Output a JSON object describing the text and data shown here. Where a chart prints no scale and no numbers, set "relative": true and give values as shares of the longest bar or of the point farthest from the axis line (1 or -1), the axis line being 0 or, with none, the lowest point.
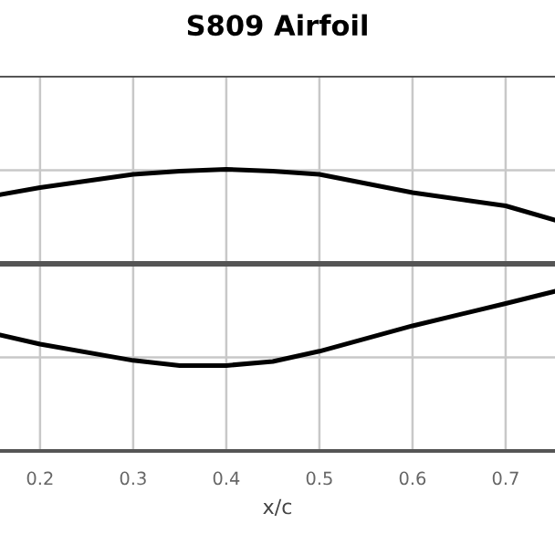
{
  "chart_data": {
    "type": "line",
    "title": "S809 Airfoil",
    "xlabel": "x/c",
    "relative": true,
    "grid": true,
    "xlim": [
      0.157,
      0.753
    ],
    "xticks": [
      0.2,
      0.3,
      0.4,
      0.5,
      0.6,
      0.7
    ],
    "series": [
      {
        "color": "#000000",
        "x": [
          0.157,
          0.2,
          0.3,
          0.35,
          0.4,
          0.45,
          0.5,
          0.6,
          0.7,
          0.753
        ],
        "values": [
          0.68,
          0.75,
          0.88,
          0.91,
          0.93,
          0.91,
          0.88,
          0.7,
          0.57,
          0.43
        ]
      },
      {
        "color": "#000000",
        "x": [
          0.157,
          0.2,
          0.3,
          0.35,
          0.4,
          0.45,
          0.5,
          0.6,
          0.7,
          0.753
        ],
        "values": [
          -0.7,
          -0.79,
          -0.95,
          -1,
          -1,
          -0.96,
          -0.86,
          -0.61,
          -0.39,
          -0.27
        ]
      }
    ]
  }
}
